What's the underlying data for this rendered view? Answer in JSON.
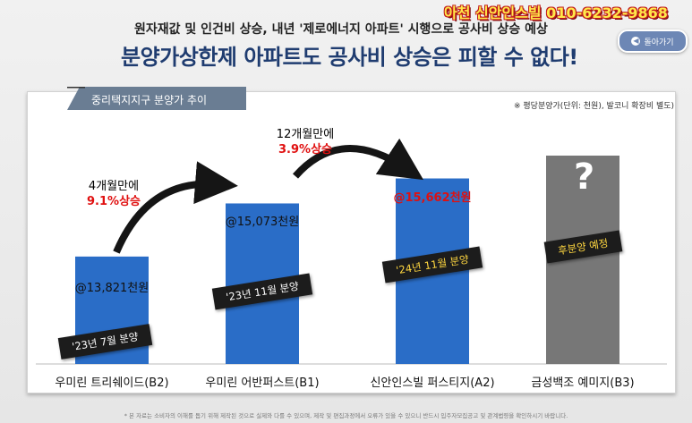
{
  "header": {
    "subtitle": "원자재값 및 인건비 상승, 내년 '제로에너지 아파트' 시행으로 공사비 상승 예상",
    "title": "분양가상한제 아파트도 공사비 상승은 피할 수 없다!",
    "watermark": "아천 신안인스빌 010-6232-9868",
    "back_button_label": "돌아가기"
  },
  "panel": {
    "tab_label": "중리택지지구 분양가 추이",
    "unit_note": "※ 평당분양가(단위: 천원), 발코니 확장비 별도)"
  },
  "footnote": "* 본 자료는 소비자의 이해를 돕기 위해 제작된 것으로 실제와 다를 수 있으며, 제작 및 편집과정에서 오류가 있을 수 있으니 반드시 입주자모집공고 및 관계법령을 확인하시기 바랍니다.",
  "colors": {
    "bar_blue": "#2a6dc7",
    "bar_gray": "#777777",
    "accent_red": "#e01010",
    "title_navy": "#1f3c70"
  },
  "chart_data": {
    "type": "bar",
    "categories": [
      "우미린 트리쉐이드(B2)",
      "우미린 어반퍼스트(B1)",
      "신안인스빌 퍼스티지(A2)",
      "금성백조 예미지(B3)"
    ],
    "values": [
      13821,
      15073,
      15662,
      null
    ],
    "value_labels": [
      "@13,821천원",
      "@15,073천원",
      "@15,662천원",
      "?"
    ],
    "ribbons": [
      "'23년 7월 분양",
      "'23년 11월 분양",
      "'24년 11월 분양",
      "후분양 예정"
    ],
    "annotations": [
      {
        "text": "4개월만에",
        "pct": "9.1%상승"
      },
      {
        "text": "12개월만에",
        "pct": "3.9%상승"
      }
    ]
  }
}
